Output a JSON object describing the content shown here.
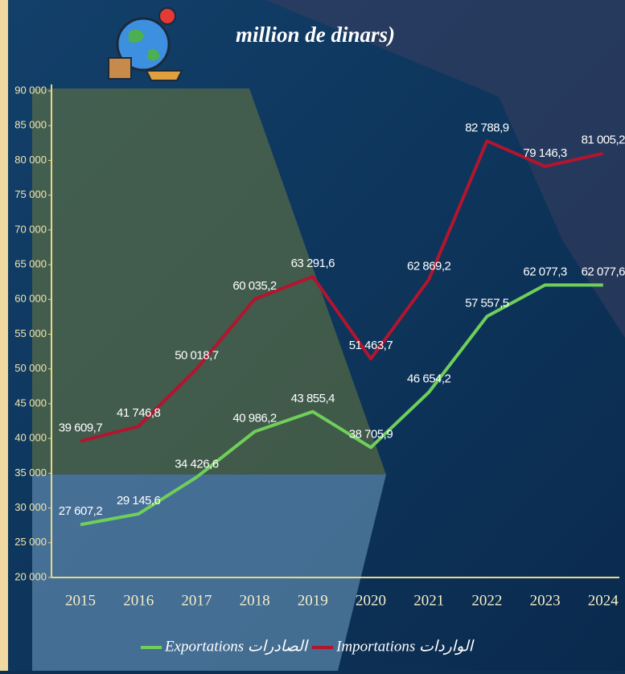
{
  "chart_data": {
    "type": "line",
    "title": "million de dinars)",
    "categories": [
      "2015",
      "2016",
      "2017",
      "2018",
      "2019",
      "2020",
      "2021",
      "2022",
      "2023",
      "2024"
    ],
    "series": [
      {
        "name": "Importations الواردات",
        "color": "#b3152e",
        "values": [
          39609.7,
          41746.8,
          50018.7,
          60035.2,
          63291.6,
          51463.7,
          62869.2,
          82788.9,
          79146.3,
          81005.2
        ],
        "value_labels": [
          "39 609,7",
          "41 746,8",
          "50 018,7",
          "60 035,2",
          "63 291,6",
          "51 463,7",
          "62 869,2",
          "82 788,9",
          "79 146,3",
          "81 005,2"
        ]
      },
      {
        "name": "Exportations الصادرات",
        "color": "#6fcf5a",
        "values": [
          27607.2,
          29145.6,
          34426.6,
          40986.2,
          43855.4,
          38705.9,
          46654.2,
          57557.5,
          62077.3,
          62077.6
        ],
        "value_labels": [
          "27 607,2",
          "29 145,6",
          "34 426,6",
          "40 986,2",
          "43 855,4",
          "38 705,9",
          "46 654,2",
          "57 557,5",
          "62 077,3",
          "62 077,6"
        ]
      }
    ],
    "ylim": [
      20000,
      90000
    ],
    "yticks": [
      {
        "value": 20000,
        "label": "20 000"
      },
      {
        "value": 25000,
        "label": "25 000"
      },
      {
        "value": 30000,
        "label": "30 000"
      },
      {
        "value": 35000,
        "label": "35 000"
      },
      {
        "value": 40000,
        "label": "40 000"
      },
      {
        "value": 45000,
        "label": "45 000"
      },
      {
        "value": 50000,
        "label": "50 000"
      },
      {
        "value": 55000,
        "label": "55 000"
      },
      {
        "value": 60000,
        "label": "60 000"
      },
      {
        "value": 65000,
        "label": "65 000"
      },
      {
        "value": 70000,
        "label": "70 000"
      },
      {
        "value": 75000,
        "label": "75 000"
      },
      {
        "value": 80000,
        "label": "80 000"
      },
      {
        "value": 85000,
        "label": "85 000"
      },
      {
        "value": 90000,
        "label": "90 000"
      }
    ],
    "grid": false
  }
}
